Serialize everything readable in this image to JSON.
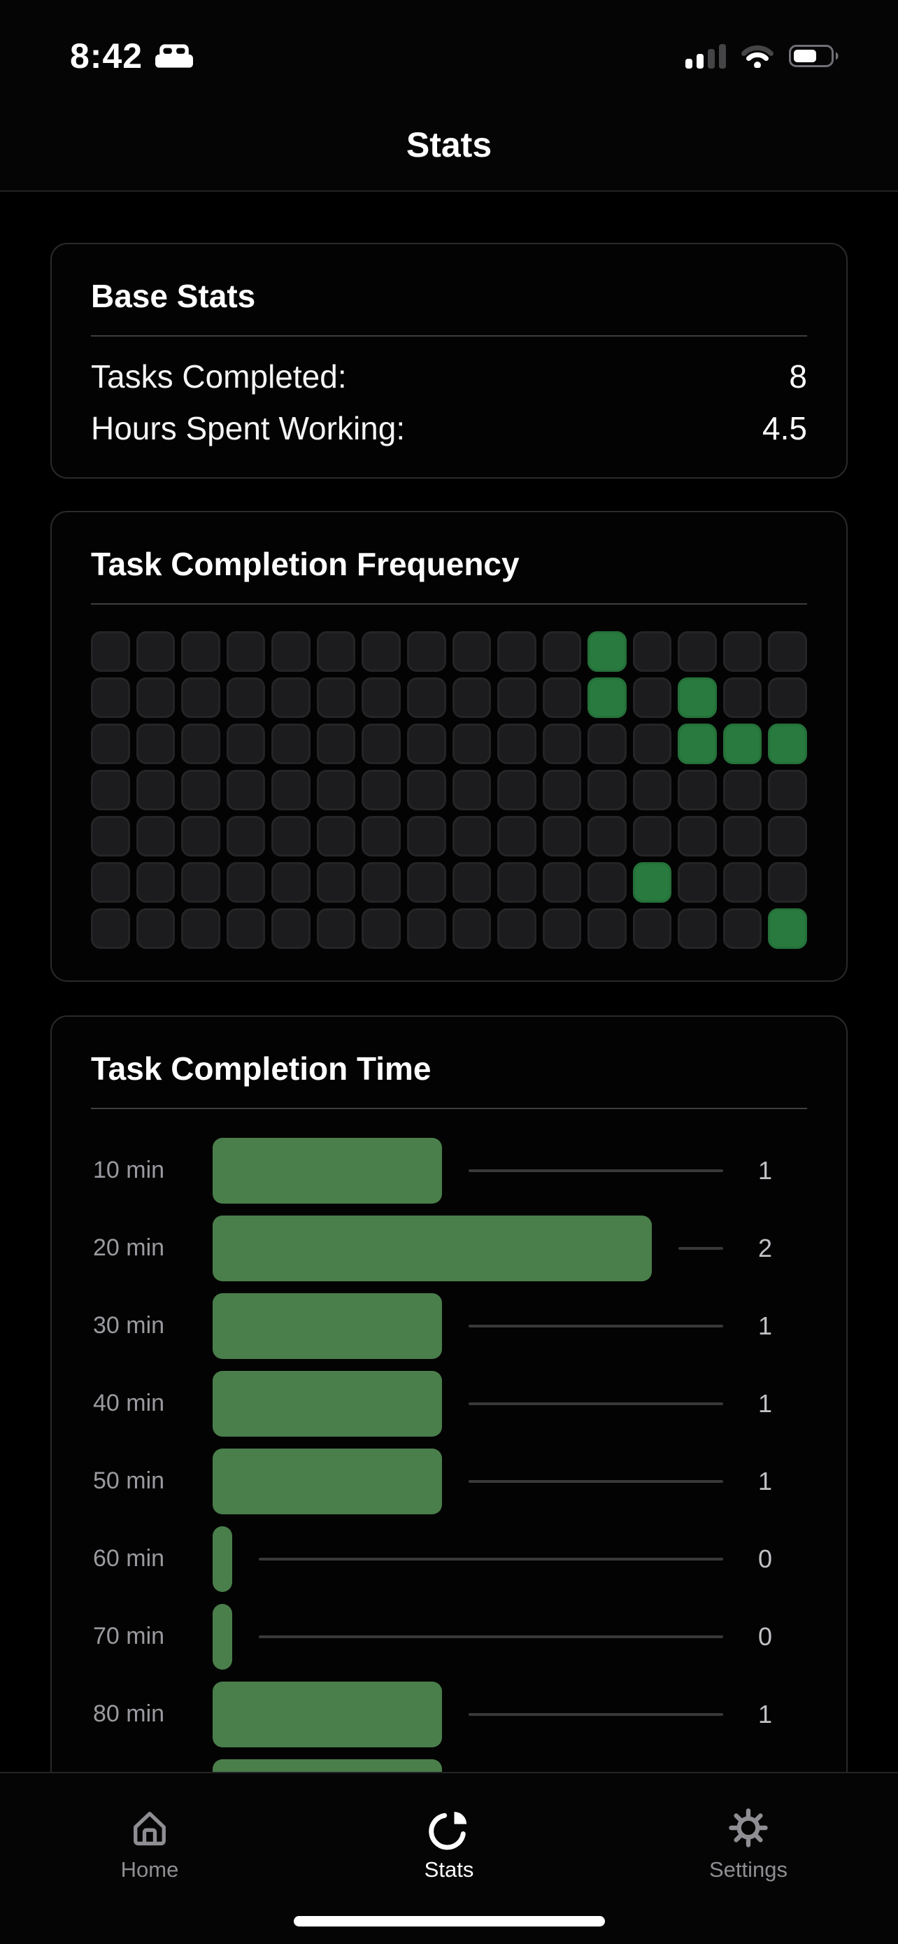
{
  "status_bar": {
    "time": "8:42",
    "focus_mode_icon": "bed-icon",
    "signal": {
      "bars_filled": 2,
      "bars_total": 4
    },
    "wifi": {
      "level": 2,
      "max": 3
    },
    "battery": {
      "percent": 60
    }
  },
  "nav": {
    "title": "Stats"
  },
  "cards": {
    "base_stats": {
      "title": "Base Stats",
      "rows": [
        {
          "label": "Tasks Completed:",
          "value": "8"
        },
        {
          "label": "Hours Spent Working:",
          "value": "4.5"
        }
      ]
    },
    "frequency": {
      "title": "Task Completion Frequency"
    },
    "completion_time": {
      "title": "Task Completion Time"
    }
  },
  "chart_data": [
    {
      "type": "heatmap",
      "title": "Task Completion Frequency",
      "rows": 7,
      "cols": 16,
      "active_cells_row_col": [
        [
          0,
          11
        ],
        [
          1,
          11
        ],
        [
          1,
          13
        ],
        [
          2,
          13
        ],
        [
          2,
          14
        ],
        [
          2,
          15
        ],
        [
          5,
          12
        ],
        [
          6,
          15
        ]
      ],
      "active_color": "#287a3e",
      "inactive_color": "#1c1c1e",
      "legend": "none",
      "axis_labels": "none"
    },
    {
      "type": "bar",
      "orientation": "horizontal",
      "title": "Task Completion Time",
      "categories": [
        "10 min",
        "20 min",
        "30 min",
        "40 min",
        "50 min",
        "60 min",
        "70 min",
        "80 min"
      ],
      "values": [
        1,
        2,
        1,
        1,
        1,
        0,
        0,
        1
      ],
      "value_labels": [
        "1",
        "2",
        "1",
        "1",
        "1",
        "0",
        "0",
        "1"
      ],
      "xlim": [
        0,
        2
      ],
      "bar_color": "#4a7e4b",
      "grid": "off",
      "legend": "none",
      "partial_ninth_bar_visible": true,
      "partial_ninth_bar_equivalent_value": 1
    }
  ],
  "tab_bar": {
    "items": [
      {
        "label": "Home",
        "icon": "home-icon",
        "active": false
      },
      {
        "label": "Stats",
        "icon": "pie-chart-icon",
        "active": true
      },
      {
        "label": "Settings",
        "icon": "gear-icon",
        "active": false
      }
    ]
  },
  "colors": {
    "grid_green": "#287a3e",
    "bar_green": "#4a7e4b",
    "card_border": "#2a2a2c",
    "divider": "#3e3e40",
    "chart_label_gray": "#9a9a9f",
    "chart_value_gray": "#c2c2c6",
    "inactive_tab_gray": "#8e8e93"
  }
}
